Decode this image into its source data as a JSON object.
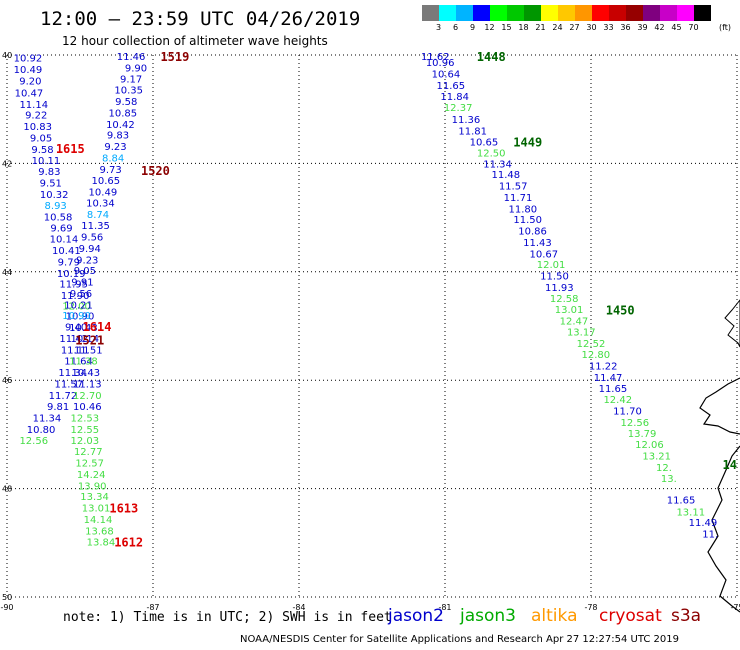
{
  "header": {
    "title": "12:00 – 23:59 UTC 04/26/2019",
    "subtitle": "12 hour collection of altimeter wave heights"
  },
  "colorbar": {
    "colors": [
      "#7a7a7a",
      "#00ffff",
      "#00b4ff",
      "#0000ff",
      "#00ff00",
      "#00c800",
      "#009600",
      "#ffff00",
      "#ffc800",
      "#ff9600",
      "#ff0000",
      "#c80000",
      "#960000",
      "#7f007f",
      "#c800c8",
      "#ff00ff",
      "#000000"
    ],
    "labels": [
      "3",
      "6",
      "9",
      "12",
      "15",
      "18",
      "21",
      "24",
      "27",
      "30",
      "33",
      "36",
      "39",
      "42",
      "45",
      "70"
    ],
    "unit": "(ft)"
  },
  "map": {
    "lat_labels": [
      "40",
      "42",
      "44",
      "46",
      "48",
      "50"
    ],
    "lon_labels": [
      "-90",
      "-87",
      "-84",
      "-81",
      "-78",
      "-75"
    ],
    "lon_range": [
      -90,
      -75
    ],
    "lat_range": [
      40,
      50
    ]
  },
  "observations": [
    {
      "t": "10.92",
      "lon": -89.57,
      "lat": 40.05,
      "c": "#0000cc"
    },
    {
      "t": "10.49",
      "lon": -89.57,
      "lat": 40.26,
      "c": "#0000cc"
    },
    {
      "t": "9.20",
      "lon": -89.52,
      "lat": 40.47,
      "c": "#0000cc"
    },
    {
      "t": "10.47",
      "lon": -89.55,
      "lat": 40.69,
      "c": "#0000cc"
    },
    {
      "t": "11.14",
      "lon": -89.45,
      "lat": 40.9,
      "c": "#0000cc"
    },
    {
      "t": "9.22",
      "lon": -89.4,
      "lat": 41.1,
      "c": "#0000cc"
    },
    {
      "t": "10.83",
      "lon": -89.37,
      "lat": 41.31,
      "c": "#0000cc"
    },
    {
      "t": "9.05",
      "lon": -89.3,
      "lat": 41.52,
      "c": "#0000cc"
    },
    {
      "t": "9.58",
      "lon": -89.27,
      "lat": 41.73,
      "c": "#0000cc"
    },
    {
      "t": "10.11",
      "lon": -89.2,
      "lat": 41.94,
      "c": "#0000cc"
    },
    {
      "t": "9.83",
      "lon": -89.13,
      "lat": 42.14,
      "c": "#0000cc"
    },
    {
      "t": "9.51",
      "lon": -89.1,
      "lat": 42.35,
      "c": "#0000cc"
    },
    {
      "t": "10.32",
      "lon": -89.03,
      "lat": 42.56,
      "c": "#0000cc"
    },
    {
      "t": "8.93",
      "lon": -89.0,
      "lat": 42.77,
      "c": "#00aaff"
    },
    {
      "t": "10.58",
      "lon": -88.95,
      "lat": 42.98,
      "c": "#0000cc"
    },
    {
      "t": "9.69",
      "lon": -88.88,
      "lat": 43.18,
      "c": "#0000cc"
    },
    {
      "t": "10.14",
      "lon": -88.83,
      "lat": 43.39,
      "c": "#0000cc"
    },
    {
      "t": "10.41",
      "lon": -88.78,
      "lat": 43.6,
      "c": "#0000cc"
    },
    {
      "t": "9.79",
      "lon": -88.73,
      "lat": 43.81,
      "c": "#0000cc"
    },
    {
      "t": "10.19",
      "lon": -88.68,
      "lat": 44.02,
      "c": "#0000cc"
    },
    {
      "t": "11.95",
      "lon": -88.63,
      "lat": 44.22,
      "c": "#0000cc"
    },
    {
      "t": "11.90",
      "lon": -88.6,
      "lat": 44.43,
      "c": "#0000cc"
    },
    {
      "t": "12.00",
      "lon": -88.57,
      "lat": 44.62,
      "c": "#44dd44"
    },
    {
      "t": "10.90",
      "lon": -88.5,
      "lat": 44.81,
      "c": "#0000cc"
    },
    {
      "t": "10.43",
      "lon": -88.43,
      "lat": 45.02,
      "c": "#0000cc"
    },
    {
      "t": "10.14",
      "lon": -88.4,
      "lat": 45.22,
      "c": "#0000cc"
    },
    {
      "t": "11.51",
      "lon": -88.33,
      "lat": 45.43,
      "c": "#0000cc"
    },
    {
      "t": "11.64",
      "lon": -88.53,
      "lat": 45.64,
      "c": "#0000cc"
    },
    {
      "t": "11.34",
      "lon": -88.65,
      "lat": 45.85,
      "c": "#0000cc"
    },
    {
      "t": "11.57",
      "lon": -88.73,
      "lat": 46.06,
      "c": "#0000cc"
    },
    {
      "t": "11.72",
      "lon": -88.85,
      "lat": 46.27,
      "c": "#0000cc"
    },
    {
      "t": "9.81",
      "lon": -88.95,
      "lat": 46.48,
      "c": "#0000cc"
    },
    {
      "t": "11.34",
      "lon": -89.18,
      "lat": 46.69,
      "c": "#0000cc"
    },
    {
      "t": "10.80",
      "lon": -89.3,
      "lat": 46.9,
      "c": "#0000cc"
    },
    {
      "t": "12.56",
      "lon": -89.45,
      "lat": 47.1,
      "c": "#44dd44"
    },
    {
      "t": "11.46",
      "lon": -87.45,
      "lat": 40.02,
      "c": "#0000cc"
    },
    {
      "t": "9.90",
      "lon": -87.35,
      "lat": 40.23,
      "c": "#0000cc"
    },
    {
      "t": "9.17",
      "lon": -87.45,
      "lat": 40.43,
      "c": "#0000cc"
    },
    {
      "t": "10.35",
      "lon": -87.5,
      "lat": 40.64,
      "c": "#0000cc"
    },
    {
      "t": "9.58",
      "lon": -87.55,
      "lat": 40.85,
      "c": "#0000cc"
    },
    {
      "t": "10.85",
      "lon": -87.62,
      "lat": 41.06,
      "c": "#0000cc"
    },
    {
      "t": "10.42",
      "lon": -87.67,
      "lat": 41.27,
      "c": "#0000cc"
    },
    {
      "t": "9.83",
      "lon": -87.72,
      "lat": 41.47,
      "c": "#0000cc"
    },
    {
      "t": "9.23",
      "lon": -87.77,
      "lat": 41.68,
      "c": "#0000cc"
    },
    {
      "t": "8.84",
      "lon": -87.82,
      "lat": 41.89,
      "c": "#00aaff"
    },
    {
      "t": "9.73",
      "lon": -87.87,
      "lat": 42.1,
      "c": "#0000cc"
    },
    {
      "t": "10.65",
      "lon": -87.97,
      "lat": 42.31,
      "c": "#0000cc"
    },
    {
      "t": "10.49",
      "lon": -88.03,
      "lat": 42.52,
      "c": "#0000cc"
    },
    {
      "t": "10.34",
      "lon": -88.08,
      "lat": 42.72,
      "c": "#0000cc"
    },
    {
      "t": "8.74",
      "lon": -88.13,
      "lat": 42.93,
      "c": "#00aaff"
    },
    {
      "t": "11.35",
      "lon": -88.18,
      "lat": 43.14,
      "c": "#0000cc"
    },
    {
      "t": "9.56",
      "lon": -88.25,
      "lat": 43.35,
      "c": "#0000cc"
    },
    {
      "t": "9.94",
      "lon": -88.3,
      "lat": 43.56,
      "c": "#0000cc"
    },
    {
      "t": "9.23",
      "lon": -88.35,
      "lat": 43.77,
      "c": "#0000cc"
    },
    {
      "t": "9.05",
      "lon": -88.4,
      "lat": 43.97,
      "c": "#0000cc"
    },
    {
      "t": "9.91",
      "lon": -88.45,
      "lat": 44.18,
      "c": "#0000cc"
    },
    {
      "t": "9.56",
      "lon": -88.48,
      "lat": 44.39,
      "c": "#0000cc"
    },
    {
      "t": "10.21",
      "lon": -88.53,
      "lat": 44.6,
      "c": "#0000cc"
    },
    {
      "t": "10.90",
      "lon": -88.57,
      "lat": 44.8,
      "c": "#00aaff"
    },
    {
      "t": "9.40",
      "lon": -88.58,
      "lat": 45.01,
      "c": "#0000cc"
    },
    {
      "t": "11.42",
      "lon": -88.63,
      "lat": 45.22,
      "c": "#0000cc"
    },
    {
      "t": "11.11",
      "lon": -88.6,
      "lat": 45.43,
      "c": "#0000cc"
    },
    {
      "t": "11.38",
      "lon": -88.43,
      "lat": 45.64,
      "c": "#44dd44"
    },
    {
      "t": "10.43",
      "lon": -88.38,
      "lat": 45.85,
      "c": "#0000cc"
    },
    {
      "t": "11.13",
      "lon": -88.35,
      "lat": 46.06,
      "c": "#0000cc"
    },
    {
      "t": "12.70",
      "lon": -88.35,
      "lat": 46.27,
      "c": "#44dd44"
    },
    {
      "t": "10.46",
      "lon": -88.35,
      "lat": 46.48,
      "c": "#0000cc"
    },
    {
      "t": "12.53",
      "lon": -88.4,
      "lat": 46.69,
      "c": "#44dd44"
    },
    {
      "t": "12.55",
      "lon": -88.4,
      "lat": 46.9,
      "c": "#44dd44"
    },
    {
      "t": "12.03",
      "lon": -88.4,
      "lat": 47.1,
      "c": "#44dd44"
    },
    {
      "t": "12.77",
      "lon": -88.33,
      "lat": 47.31,
      "c": "#44dd44"
    },
    {
      "t": "12.57",
      "lon": -88.3,
      "lat": 47.52,
      "c": "#44dd44"
    },
    {
      "t": "14.24",
      "lon": -88.27,
      "lat": 47.73,
      "c": "#44dd44"
    },
    {
      "t": "13.90",
      "lon": -88.25,
      "lat": 47.94,
      "c": "#44dd44"
    },
    {
      "t": "13.34",
      "lon": -88.2,
      "lat": 48.14,
      "c": "#44dd44"
    },
    {
      "t": "13.01",
      "lon": -88.17,
      "lat": 48.35,
      "c": "#44dd44"
    },
    {
      "t": "14.14",
      "lon": -88.13,
      "lat": 48.56,
      "c": "#44dd44"
    },
    {
      "t": "13.68",
      "lon": -88.1,
      "lat": 48.77,
      "c": "#44dd44"
    },
    {
      "t": "13.84",
      "lon": -88.07,
      "lat": 48.98,
      "c": "#44dd44"
    },
    {
      "t": "11.62",
      "lon": -81.2,
      "lat": 40.02,
      "c": "#0000cc"
    },
    {
      "t": "10.96",
      "lon": -81.1,
      "lat": 40.13,
      "c": "#0000cc"
    },
    {
      "t": "10.64",
      "lon": -80.98,
      "lat": 40.34,
      "c": "#0000cc"
    },
    {
      "t": "11.65",
      "lon": -80.88,
      "lat": 40.55,
      "c": "#0000cc"
    },
    {
      "t": "11.84",
      "lon": -80.8,
      "lat": 40.76,
      "c": "#0000cc"
    },
    {
      "t": "12.37",
      "lon": -80.73,
      "lat": 40.96,
      "c": "#44dd44"
    },
    {
      "t": "11.36",
      "lon": -80.57,
      "lat": 41.18,
      "c": "#0000cc"
    },
    {
      "t": "11.81",
      "lon": -80.43,
      "lat": 41.39,
      "c": "#0000cc"
    },
    {
      "t": "10.65",
      "lon": -80.2,
      "lat": 41.6,
      "c": "#0000cc"
    },
    {
      "t": "12.50",
      "lon": -80.05,
      "lat": 41.8,
      "c": "#44dd44"
    },
    {
      "t": "11.34",
      "lon": -79.92,
      "lat": 42.0,
      "c": "#0000cc"
    },
    {
      "t": "11.48",
      "lon": -79.75,
      "lat": 42.2,
      "c": "#0000cc"
    },
    {
      "t": "11.57",
      "lon": -79.6,
      "lat": 42.41,
      "c": "#0000cc"
    },
    {
      "t": "11.71",
      "lon": -79.5,
      "lat": 42.62,
      "c": "#0000cc"
    },
    {
      "t": "11.80",
      "lon": -79.4,
      "lat": 42.83,
      "c": "#0000cc"
    },
    {
      "t": "11.50",
      "lon": -79.3,
      "lat": 43.03,
      "c": "#0000cc"
    },
    {
      "t": "10.86",
      "lon": -79.2,
      "lat": 43.24,
      "c": "#0000cc"
    },
    {
      "t": "11.43",
      "lon": -79.1,
      "lat": 43.45,
      "c": "#0000cc"
    },
    {
      "t": "10.67",
      "lon": -78.97,
      "lat": 43.66,
      "c": "#0000cc"
    },
    {
      "t": "12.01",
      "lon": -78.82,
      "lat": 43.86,
      "c": "#44dd44"
    },
    {
      "t": "11.50",
      "lon": -78.75,
      "lat": 44.07,
      "c": "#0000cc"
    },
    {
      "t": "11.93",
      "lon": -78.65,
      "lat": 44.28,
      "c": "#0000cc"
    },
    {
      "t": "12.58",
      "lon": -78.55,
      "lat": 44.48,
      "c": "#44dd44"
    },
    {
      "t": "13.01",
      "lon": -78.45,
      "lat": 44.69,
      "c": "#44dd44"
    },
    {
      "t": "12.47",
      "lon": -78.35,
      "lat": 44.9,
      "c": "#44dd44"
    },
    {
      "t": "13.17",
      "lon": -78.2,
      "lat": 45.1,
      "c": "#44dd44"
    },
    {
      "t": "12.52",
      "lon": -78.0,
      "lat": 45.31,
      "c": "#44dd44"
    },
    {
      "t": "12.80",
      "lon": -77.9,
      "lat": 45.52,
      "c": "#44dd44"
    },
    {
      "t": "11.22",
      "lon": -77.75,
      "lat": 45.73,
      "c": "#0000cc"
    },
    {
      "t": "11.47",
      "lon": -77.65,
      "lat": 45.94,
      "c": "#0000cc"
    },
    {
      "t": "11.65",
      "lon": -77.55,
      "lat": 46.14,
      "c": "#0000cc"
    },
    {
      "t": "12.42",
      "lon": -77.45,
      "lat": 46.35,
      "c": "#44dd44"
    },
    {
      "t": "11.70",
      "lon": -77.25,
      "lat": 46.56,
      "c": "#0000cc"
    },
    {
      "t": "12.56",
      "lon": -77.1,
      "lat": 46.77,
      "c": "#44dd44"
    },
    {
      "t": "13.79",
      "lon": -76.95,
      "lat": 46.97,
      "c": "#44dd44"
    },
    {
      "t": "12.06",
      "lon": -76.8,
      "lat": 47.18,
      "c": "#44dd44"
    },
    {
      "t": "13.21",
      "lon": -76.65,
      "lat": 47.39,
      "c": "#44dd44"
    },
    {
      "t": "12.",
      "lon": -76.5,
      "lat": 47.6,
      "c": "#44dd44"
    },
    {
      "t": "13.",
      "lon": -76.4,
      "lat": 47.8,
      "c": "#44dd44"
    },
    {
      "t": "11.65",
      "lon": -76.15,
      "lat": 48.2,
      "c": "#0000cc"
    },
    {
      "t": "13.11",
      "lon": -75.95,
      "lat": 48.42,
      "c": "#44dd44"
    },
    {
      "t": "11.49",
      "lon": -75.7,
      "lat": 48.62,
      "c": "#0000cc"
    },
    {
      "t": "11.",
      "lon": -75.55,
      "lat": 48.83,
      "c": "#0000cc"
    }
  ],
  "time_labels": [
    {
      "t": "1519",
      "lon": -86.55,
      "lat": 40.02,
      "c": "#8b0000"
    },
    {
      "t": "1615",
      "lon": -88.7,
      "lat": 41.72,
      "c": "#dd0000"
    },
    {
      "t": "1520",
      "lon": -86.95,
      "lat": 42.12,
      "c": "#8b0000"
    },
    {
      "t": "1614",
      "lon": -88.15,
      "lat": 45.0,
      "c": "#dd0000"
    },
    {
      "t": "1521",
      "lon": -88.3,
      "lat": 45.25,
      "c": "#8b0000"
    },
    {
      "t": "1613",
      "lon": -87.6,
      "lat": 48.35,
      "c": "#dd0000"
    },
    {
      "t": "1612",
      "lon": -87.5,
      "lat": 48.98,
      "c": "#dd0000"
    },
    {
      "t": "1448",
      "lon": -80.05,
      "lat": 40.02,
      "c": "#006400"
    },
    {
      "t": "1449",
      "lon": -79.3,
      "lat": 41.6,
      "c": "#006400"
    },
    {
      "t": "1450",
      "lon": -77.4,
      "lat": 44.7,
      "c": "#006400"
    },
    {
      "t": "14",
      "lon": -75.15,
      "lat": 47.55,
      "c": "#006400"
    }
  ],
  "footer": {
    "note": "note:  1) Time is in UTC;  2) SWH is in feet",
    "legend": [
      {
        "label": "jason2",
        "color": "#0000cc",
        "x": 388
      },
      {
        "label": "jason3",
        "color": "#00aa00",
        "x": 460
      },
      {
        "label": "altika",
        "color": "#ff9900",
        "x": 531
      },
      {
        "label": "cryosat",
        "color": "#dd0000",
        "x": 599
      },
      {
        "label": "s3a",
        "color": "#8b0000",
        "x": 671
      }
    ],
    "credit": "NOAA/NESDIS Center for Satellite Applications and Research    Apr 27 12:27:54 UTC 2019"
  }
}
